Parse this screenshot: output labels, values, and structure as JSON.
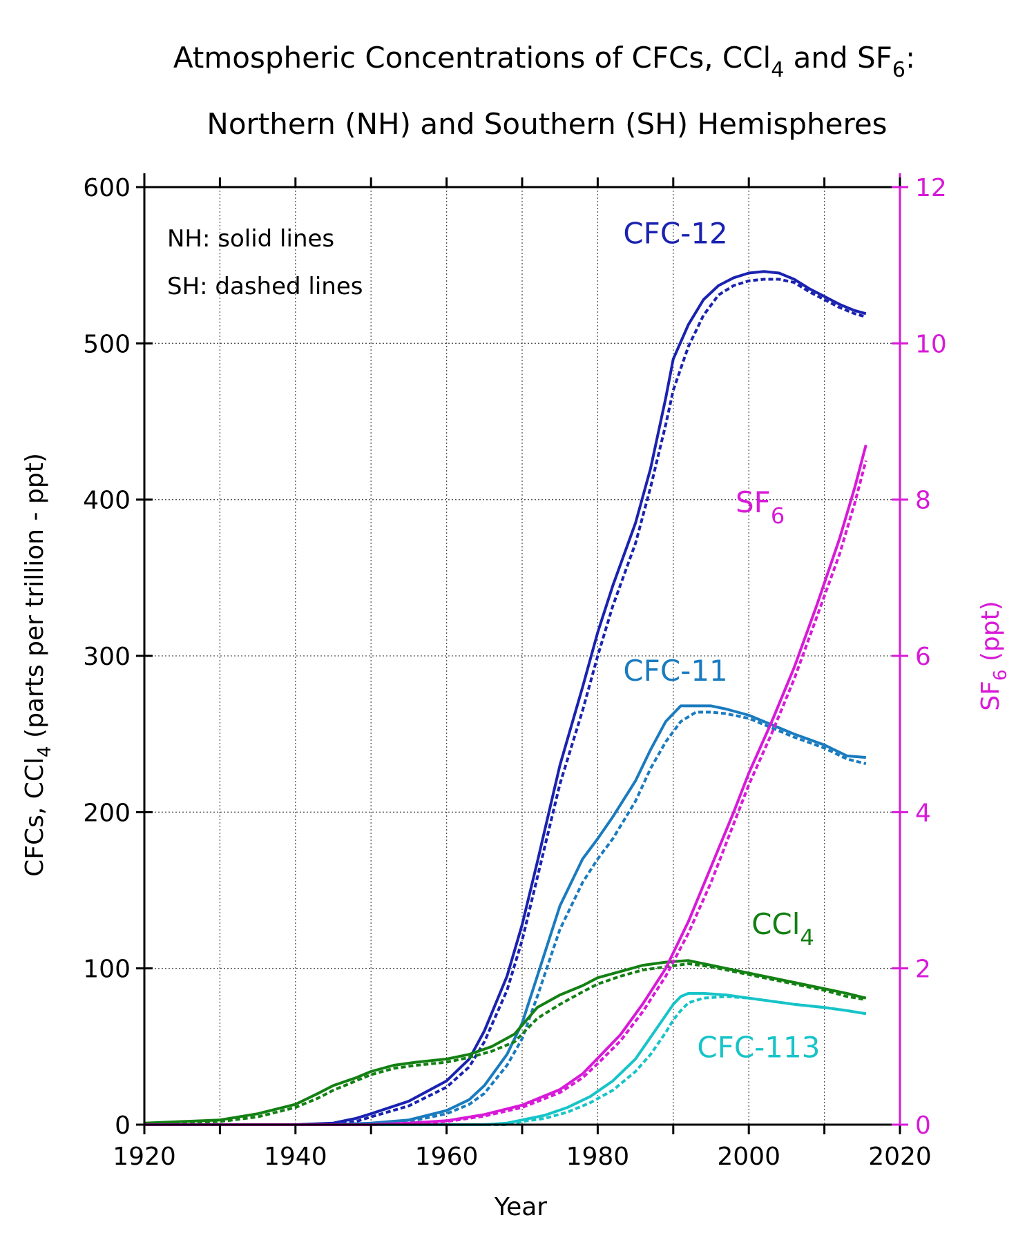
{
  "chart_data": {
    "type": "line",
    "title_line1": {
      "pre": "Atmospheric Concentrations of CFCs, CCl",
      "sub1": "4",
      "mid": " and SF",
      "sub2": "6",
      "post": ":"
    },
    "title_line2": "Northern (NH) and Southern (SH) Hemispheres",
    "xlabel": "Year",
    "ylabel_left": {
      "pre": "CFCs, CCl",
      "sub": "4",
      "post": " (parts per trillion - ppt)"
    },
    "ylabel_right": {
      "pre": "SF",
      "sub": "6",
      "post": " (ppt)"
    },
    "xlim": [
      1920,
      2020
    ],
    "ylim_left": [
      0,
      600
    ],
    "ylim_right": [
      0,
      12
    ],
    "x_ticks": [
      1920,
      1940,
      1960,
      1980,
      2000,
      2020
    ],
    "x_grid": [
      1930,
      1940,
      1950,
      1960,
      1970,
      1980,
      1990,
      2000,
      2010
    ],
    "y_ticks_left": [
      0,
      100,
      200,
      300,
      400,
      500,
      600
    ],
    "y_ticks_right": [
      0,
      2,
      4,
      6,
      8,
      10,
      12
    ],
    "grid": true,
    "legend_notes": [
      "NH: solid lines",
      "SH: dashed lines"
    ],
    "series": [
      {
        "name": "CFC-12",
        "label": {
          "pre": "CFC-12",
          "sub": ""
        },
        "label_pos": [
          1990.3,
          564
        ],
        "color": "#1a22b0",
        "axis": "left",
        "nh": [
          [
            1920,
            0
          ],
          [
            1930,
            0
          ],
          [
            1940,
            0
          ],
          [
            1945,
            1
          ],
          [
            1948,
            4
          ],
          [
            1950,
            7
          ],
          [
            1955,
            15
          ],
          [
            1960,
            28
          ],
          [
            1963,
            42
          ],
          [
            1965,
            60
          ],
          [
            1968,
            95
          ],
          [
            1970,
            128
          ],
          [
            1972,
            168
          ],
          [
            1975,
            230
          ],
          [
            1978,
            280
          ],
          [
            1980,
            315
          ],
          [
            1982,
            345
          ],
          [
            1985,
            385
          ],
          [
            1987,
            420
          ],
          [
            1989,
            465
          ],
          [
            1990,
            490
          ],
          [
            1992,
            512
          ],
          [
            1994,
            528
          ],
          [
            1996,
            537
          ],
          [
            1998,
            542
          ],
          [
            2000,
            545
          ],
          [
            2002,
            546
          ],
          [
            2004,
            545
          ],
          [
            2006,
            541
          ],
          [
            2008,
            535
          ],
          [
            2010,
            530
          ],
          [
            2012,
            525
          ],
          [
            2014,
            521
          ],
          [
            2015.5,
            519
          ]
        ],
        "sh": [
          [
            1920,
            0
          ],
          [
            1930,
            0
          ],
          [
            1940,
            0
          ],
          [
            1945,
            0
          ],
          [
            1948,
            2
          ],
          [
            1950,
            5
          ],
          [
            1955,
            12
          ],
          [
            1960,
            24
          ],
          [
            1963,
            37
          ],
          [
            1965,
            53
          ],
          [
            1968,
            86
          ],
          [
            1970,
            118
          ],
          [
            1972,
            158
          ],
          [
            1975,
            218
          ],
          [
            1978,
            265
          ],
          [
            1980,
            300
          ],
          [
            1982,
            332
          ],
          [
            1985,
            372
          ],
          [
            1987,
            408
          ],
          [
            1989,
            448
          ],
          [
            1990,
            470
          ],
          [
            1992,
            498
          ],
          [
            1994,
            518
          ],
          [
            1996,
            531
          ],
          [
            1998,
            537
          ],
          [
            2000,
            540
          ],
          [
            2002,
            541
          ],
          [
            2004,
            541
          ],
          [
            2006,
            539
          ],
          [
            2008,
            533
          ],
          [
            2010,
            528
          ],
          [
            2012,
            523
          ],
          [
            2014,
            519
          ],
          [
            2015.5,
            517
          ]
        ]
      },
      {
        "name": "CFC-11",
        "label": {
          "pre": "CFC-11",
          "sub": ""
        },
        "label_pos": [
          1990.3,
          284
        ],
        "color": "#1a7bbf",
        "axis": "left",
        "nh": [
          [
            1920,
            0
          ],
          [
            1945,
            0
          ],
          [
            1950,
            1
          ],
          [
            1955,
            3
          ],
          [
            1960,
            9
          ],
          [
            1963,
            16
          ],
          [
            1965,
            25
          ],
          [
            1968,
            45
          ],
          [
            1970,
            65
          ],
          [
            1972,
            95
          ],
          [
            1975,
            140
          ],
          [
            1978,
            170
          ],
          [
            1980,
            183
          ],
          [
            1982,
            197
          ],
          [
            1985,
            220
          ],
          [
            1987,
            240
          ],
          [
            1989,
            258
          ],
          [
            1991,
            268
          ],
          [
            1993,
            268
          ],
          [
            1995,
            268
          ],
          [
            1997,
            266
          ],
          [
            2000,
            262
          ],
          [
            2003,
            256
          ],
          [
            2006,
            250
          ],
          [
            2010,
            243
          ],
          [
            2013,
            236
          ],
          [
            2015.5,
            235
          ]
        ],
        "sh": [
          [
            1920,
            0
          ],
          [
            1945,
            0
          ],
          [
            1950,
            0
          ],
          [
            1955,
            2
          ],
          [
            1960,
            7
          ],
          [
            1963,
            13
          ],
          [
            1965,
            20
          ],
          [
            1968,
            38
          ],
          [
            1970,
            55
          ],
          [
            1972,
            82
          ],
          [
            1975,
            125
          ],
          [
            1978,
            155
          ],
          [
            1980,
            170
          ],
          [
            1982,
            183
          ],
          [
            1985,
            207
          ],
          [
            1987,
            228
          ],
          [
            1989,
            245
          ],
          [
            1991,
            258
          ],
          [
            1993,
            264
          ],
          [
            1995,
            264
          ],
          [
            1997,
            263
          ],
          [
            2000,
            260
          ],
          [
            2003,
            254
          ],
          [
            2006,
            248
          ],
          [
            2010,
            241
          ],
          [
            2013,
            234
          ],
          [
            2015.5,
            231
          ]
        ]
      },
      {
        "name": "CCl4",
        "label": {
          "pre": "CCl",
          "sub": "4"
        },
        "label_pos": [
          2004.5,
          122
        ],
        "color": "#138013",
        "axis": "left",
        "nh": [
          [
            1920,
            1
          ],
          [
            1925,
            2
          ],
          [
            1930,
            3
          ],
          [
            1935,
            7
          ],
          [
            1940,
            13
          ],
          [
            1943,
            20
          ],
          [
            1945,
            25
          ],
          [
            1948,
            30
          ],
          [
            1950,
            34
          ],
          [
            1953,
            38
          ],
          [
            1956,
            40
          ],
          [
            1960,
            42
          ],
          [
            1963,
            45
          ],
          [
            1966,
            50
          ],
          [
            1969,
            58
          ],
          [
            1972,
            75
          ],
          [
            1975,
            83
          ],
          [
            1978,
            89
          ],
          [
            1980,
            94
          ],
          [
            1983,
            98
          ],
          [
            1986,
            102
          ],
          [
            1989,
            104
          ],
          [
            1992,
            105
          ],
          [
            1995,
            102
          ],
          [
            1998,
            99
          ],
          [
            2000,
            97
          ],
          [
            2003,
            94
          ],
          [
            2006,
            91
          ],
          [
            2010,
            87
          ],
          [
            2013,
            84
          ],
          [
            2015.5,
            81
          ]
        ],
        "sh": [
          [
            1920,
            0
          ],
          [
            1925,
            1
          ],
          [
            1930,
            2
          ],
          [
            1935,
            5
          ],
          [
            1940,
            11
          ],
          [
            1943,
            17
          ],
          [
            1945,
            22
          ],
          [
            1948,
            28
          ],
          [
            1950,
            32
          ],
          [
            1953,
            36
          ],
          [
            1956,
            38
          ],
          [
            1960,
            40
          ],
          [
            1963,
            43
          ],
          [
            1966,
            47
          ],
          [
            1969,
            53
          ],
          [
            1972,
            68
          ],
          [
            1975,
            77
          ],
          [
            1978,
            85
          ],
          [
            1980,
            90
          ],
          [
            1983,
            95
          ],
          [
            1986,
            99
          ],
          [
            1989,
            101
          ],
          [
            1992,
            103
          ],
          [
            1995,
            101
          ],
          [
            1998,
            98
          ],
          [
            2000,
            96
          ],
          [
            2003,
            93
          ],
          [
            2006,
            90
          ],
          [
            2010,
            86
          ],
          [
            2013,
            82
          ],
          [
            2015.5,
            80
          ]
        ]
      },
      {
        "name": "CFC-113",
        "label": {
          "pre": "CFC-113",
          "sub": ""
        },
        "label_pos": [
          2001.3,
          43
        ],
        "color": "#17c4c8",
        "axis": "left",
        "nh": [
          [
            1920,
            0
          ],
          [
            1965,
            0
          ],
          [
            1968,
            1
          ],
          [
            1970,
            3
          ],
          [
            1973,
            6
          ],
          [
            1976,
            11
          ],
          [
            1979,
            18
          ],
          [
            1982,
            28
          ],
          [
            1985,
            42
          ],
          [
            1987,
            56
          ],
          [
            1989,
            70
          ],
          [
            1990,
            77
          ],
          [
            1991,
            82
          ],
          [
            1992,
            84
          ],
          [
            1994,
            84
          ],
          [
            1997,
            83
          ],
          [
            2000,
            81
          ],
          [
            2003,
            79
          ],
          [
            2006,
            77
          ],
          [
            2010,
            75
          ],
          [
            2013,
            73
          ],
          [
            2015.5,
            71
          ]
        ],
        "sh": [
          [
            1920,
            0
          ],
          [
            1965,
            0
          ],
          [
            1968,
            0
          ],
          [
            1970,
            2
          ],
          [
            1973,
            4
          ],
          [
            1976,
            8
          ],
          [
            1979,
            14
          ],
          [
            1982,
            22
          ],
          [
            1985,
            34
          ],
          [
            1987,
            45
          ],
          [
            1989,
            59
          ],
          [
            1990,
            67
          ],
          [
            1991,
            73
          ],
          [
            1992,
            78
          ],
          [
            1994,
            81
          ],
          [
            1997,
            82
          ],
          [
            2000,
            81
          ],
          [
            2003,
            79
          ],
          [
            2006,
            77
          ],
          [
            2010,
            75
          ],
          [
            2013,
            73
          ],
          [
            2015.5,
            71
          ]
        ]
      },
      {
        "name": "SF6",
        "label": {
          "pre": "SF",
          "sub": "6"
        },
        "label_pos": [
          2001.5,
          392
        ],
        "color": "#d81ad8",
        "axis": "right",
        "nh": [
          [
            1920,
            0
          ],
          [
            1950,
            0
          ],
          [
            1955,
            0.02
          ],
          [
            1960,
            0.05
          ],
          [
            1965,
            0.13
          ],
          [
            1970,
            0.25
          ],
          [
            1975,
            0.45
          ],
          [
            1978,
            0.65
          ],
          [
            1980,
            0.85
          ],
          [
            1983,
            1.15
          ],
          [
            1986,
            1.55
          ],
          [
            1989,
            2.0
          ],
          [
            1992,
            2.6
          ],
          [
            1995,
            3.3
          ],
          [
            1998,
            4.0
          ],
          [
            2000,
            4.5
          ],
          [
            2003,
            5.15
          ],
          [
            2006,
            5.85
          ],
          [
            2009,
            6.65
          ],
          [
            2012,
            7.5
          ],
          [
            2014,
            8.15
          ],
          [
            2015.5,
            8.7
          ]
        ],
        "sh": [
          [
            1920,
            0
          ],
          [
            1950,
            0
          ],
          [
            1955,
            0.01
          ],
          [
            1960,
            0.04
          ],
          [
            1965,
            0.11
          ],
          [
            1970,
            0.22
          ],
          [
            1975,
            0.41
          ],
          [
            1978,
            0.6
          ],
          [
            1980,
            0.78
          ],
          [
            1983,
            1.07
          ],
          [
            1986,
            1.45
          ],
          [
            1989,
            1.9
          ],
          [
            1992,
            2.45
          ],
          [
            1995,
            3.1
          ],
          [
            1998,
            3.85
          ],
          [
            2000,
            4.35
          ],
          [
            2003,
            5.0
          ],
          [
            2006,
            5.7
          ],
          [
            2009,
            6.5
          ],
          [
            2012,
            7.3
          ],
          [
            2014,
            7.95
          ],
          [
            2015.5,
            8.5
          ]
        ]
      }
    ]
  }
}
